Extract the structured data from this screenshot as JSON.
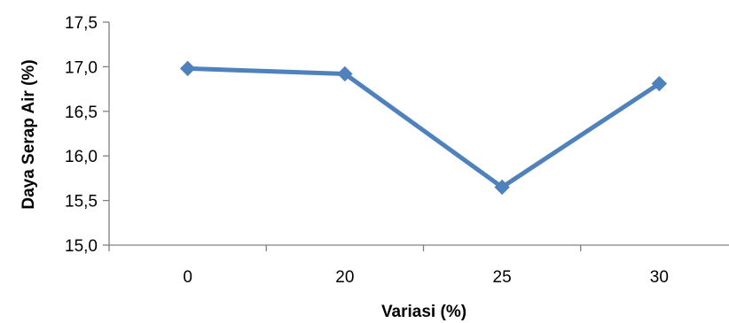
{
  "chart_data": {
    "type": "line",
    "title": "",
    "xlabel": "Variasi (%)",
    "ylabel": "Daya Serap Air (%)",
    "categories": [
      "0",
      "20",
      "25",
      "30"
    ],
    "series": [
      {
        "values": [
          16.98,
          16.92,
          15.65,
          16.81
        ],
        "color": "#4F81BD",
        "marker": "diamond"
      }
    ],
    "ylim": [
      15.0,
      17.5
    ],
    "yticks": [
      15.0,
      15.5,
      16.0,
      16.5,
      17.0,
      17.5
    ],
    "ytick_labels": [
      "15,0",
      "15,5",
      "16,0",
      "16,5",
      "17,0",
      "17,5"
    ],
    "grid": false,
    "legend": "none"
  }
}
